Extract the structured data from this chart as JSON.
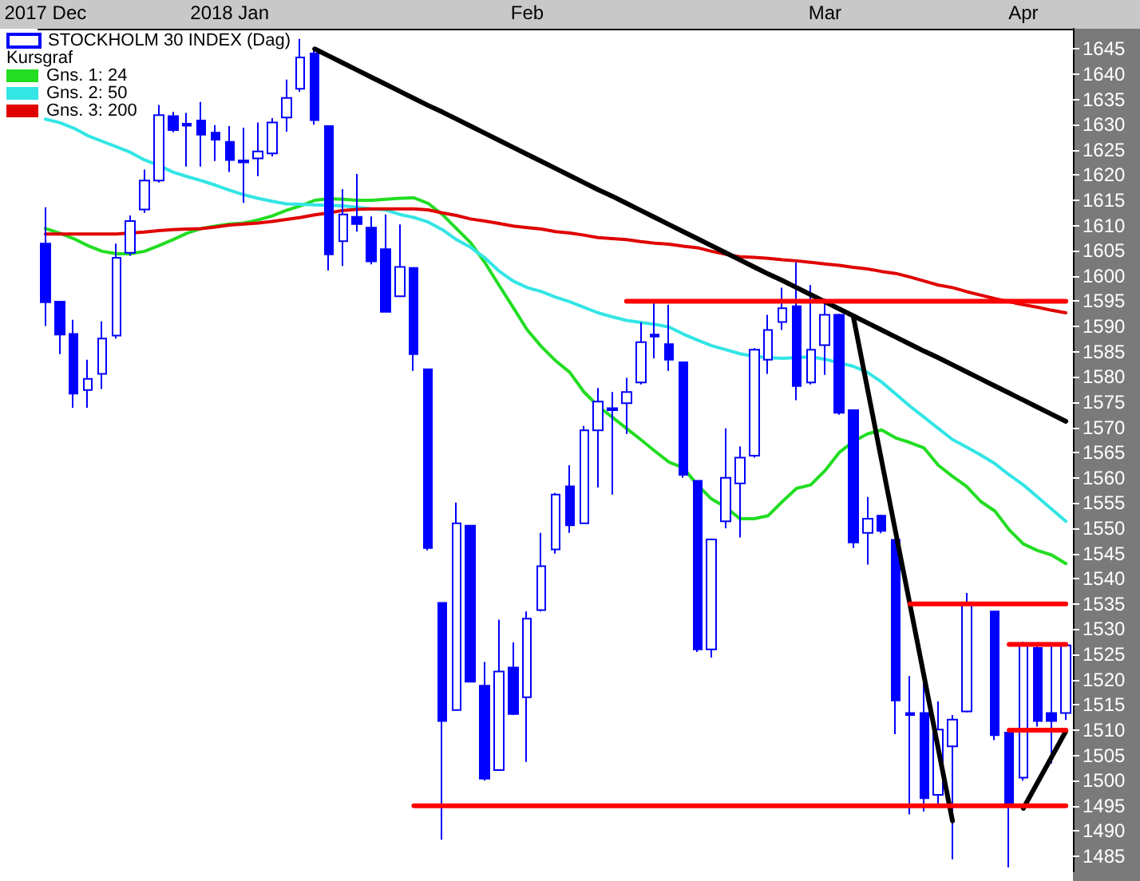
{
  "chart_data": {
    "type": "candlestick",
    "categories": [
      "2017 Dec",
      null,
      null,
      null,
      null,
      null,
      null,
      null,
      null,
      null,
      null,
      null,
      null,
      "2018 Jan",
      null,
      null,
      null,
      null,
      null,
      null,
      null,
      null,
      null,
      null,
      null,
      null,
      null,
      null,
      null,
      null,
      null,
      null,
      null,
      null,
      "Feb",
      null,
      null,
      null,
      null,
      null,
      null,
      null,
      null,
      null,
      null,
      null,
      null,
      null,
      null,
      null,
      null,
      null,
      null,
      null,
      null,
      "Mar",
      null,
      null,
      null,
      null,
      null,
      null,
      null,
      null,
      null,
      null,
      null,
      null,
      null,
      "Apr",
      null,
      null,
      null
    ],
    "series": [
      {
        "name": "STOCKHOLM 30 INDEX (Dag)",
        "color": "#0000ff",
        "ohlc": [
          [
            1606.4,
            1613.6,
            1590.1,
            1594.8
          ],
          [
            1594.9,
            1594.9,
            1584.5,
            1588.4
          ],
          [
            1588.5,
            1591.3,
            1573.9,
            1576.7
          ],
          [
            1577.4,
            1583.4,
            1573.9,
            1579.6
          ],
          [
            1580.6,
            1591.0,
            1577.6,
            1587.6
          ],
          [
            1588.2,
            1606.4,
            1587.6,
            1603.6
          ],
          [
            1604.6,
            1612.0,
            1604.0,
            1610.9
          ],
          [
            1613.2,
            1621.1,
            1612.5,
            1618.9
          ],
          [
            1618.9,
            1633.9,
            1618.5,
            1631.9
          ],
          [
            1631.7,
            1632.5,
            1628.5,
            1628.9
          ],
          [
            1630.2,
            1632.3,
            1621.7,
            1629.8
          ],
          [
            1630.8,
            1634.5,
            1621.7,
            1628.0
          ],
          [
            1628.4,
            1629.9,
            1622.8,
            1627.0
          ],
          [
            1626.6,
            1629.7,
            1620.6,
            1623.0
          ],
          [
            1622.9,
            1629.4,
            1614.5,
            1622.5
          ],
          [
            1623.3,
            1630.4,
            1619.8,
            1624.7
          ],
          [
            1624.3,
            1631.3,
            1623.7,
            1630.4
          ],
          [
            1631.4,
            1638.9,
            1628.6,
            1635.3
          ],
          [
            1637.1,
            1647.0,
            1636.5,
            1643.3
          ],
          [
            1644.1,
            1644.8,
            1630.0,
            1630.9
          ],
          [
            1629.7,
            1629.7,
            1601.1,
            1604.3
          ],
          [
            1606.9,
            1617.2,
            1602.0,
            1612.2
          ],
          [
            1611.7,
            1620.2,
            1608.8,
            1610.3
          ],
          [
            1609.6,
            1611.8,
            1602.3,
            1602.9
          ],
          [
            1605.3,
            1612.2,
            1592.9,
            1592.9
          ],
          [
            1596.0,
            1610.2,
            1596.0,
            1601.8
          ],
          [
            1601.6,
            1601.6,
            1581.2,
            1584.5
          ],
          [
            1581.5,
            1581.5,
            1545.6,
            1546.1
          ],
          [
            1535.2,
            1535.2,
            1488.3,
            1511.8
          ],
          [
            1514.0,
            1555.1,
            1514.0,
            1551.0
          ],
          [
            1550.5,
            1550.5,
            1519.6,
            1519.6
          ],
          [
            1518.8,
            1523.5,
            1500.0,
            1500.4
          ],
          [
            1502.1,
            1531.9,
            1502.0,
            1521.6
          ],
          [
            1522.4,
            1527.4,
            1513.0,
            1513.2
          ],
          [
            1516.5,
            1533.5,
            1503.7,
            1532.1
          ],
          [
            1533.8,
            1549.1,
            1533.5,
            1542.5
          ],
          [
            1545.8,
            1557.0,
            1545.0,
            1556.7
          ],
          [
            1558.3,
            1562.5,
            1549.1,
            1550.6
          ],
          [
            1551.0,
            1570.3,
            1551.0,
            1569.4
          ],
          [
            1569.4,
            1577.8,
            1558.1,
            1575.1
          ],
          [
            1573.8,
            1577.0,
            1556.7,
            1573.4
          ],
          [
            1574.8,
            1579.8,
            1568.7,
            1577.0
          ],
          [
            1578.9,
            1590.8,
            1578.5,
            1586.9
          ],
          [
            1588.4,
            1594.9,
            1583.7,
            1588.0
          ],
          [
            1586.5,
            1594.3,
            1581.2,
            1583.4
          ],
          [
            1582.9,
            1583.0,
            1560.0,
            1560.6
          ],
          [
            1559.4,
            1559.4,
            1525.5,
            1526.0
          ],
          [
            1526.0,
            1548.0,
            1524.4,
            1547.8
          ],
          [
            1551.4,
            1569.8,
            1550.0,
            1560.0
          ],
          [
            1558.9,
            1566.2,
            1548.2,
            1564.0
          ],
          [
            1564.4,
            1585.7,
            1564.0,
            1585.4
          ],
          [
            1583.4,
            1592.3,
            1580.6,
            1589.3
          ],
          [
            1590.9,
            1597.7,
            1589.3,
            1593.6
          ],
          [
            1594.0,
            1602.7,
            1575.4,
            1578.2
          ],
          [
            1578.9,
            1598.2,
            1578.5,
            1585.4
          ],
          [
            1586.3,
            1595.5,
            1580.4,
            1592.3
          ],
          [
            1592.3,
            1592.5,
            1572.5,
            1572.9
          ],
          [
            1573.4,
            1573.4,
            1546.1,
            1547.2
          ],
          [
            1549.1,
            1556.2,
            1542.8,
            1551.9
          ],
          [
            1552.5,
            1552.7,
            1549.0,
            1549.5
          ],
          [
            1547.7,
            1547.7,
            1509.2,
            1515.9
          ],
          [
            1513.4,
            1520.7,
            1493.3,
            1513.0
          ],
          [
            1513.4,
            1519.8,
            1493.9,
            1496.5
          ],
          [
            1497.2,
            1515.7,
            1495.0,
            1510.1
          ],
          [
            1506.8,
            1513.0,
            1484.4,
            1512.1
          ],
          [
            1513.7,
            1537.2,
            1513.5,
            1535.2
          ],
          null,
          [
            1533.5,
            1533.5,
            1508.0,
            1509.0
          ],
          [
            1509.5,
            1509.5,
            1482.8,
            1494.8
          ],
          [
            1500.6,
            1527.5,
            1500.0,
            1527.1
          ],
          [
            1526.3,
            1526.8,
            1510.7,
            1511.8
          ],
          [
            1513.4,
            1527.4,
            1503.4,
            1511.8
          ],
          [
            1513.4,
            1527.4,
            1512.0,
            1526.8
          ]
        ]
      },
      {
        "type": "line",
        "name": "Gns. 1: 24",
        "color": "#22dd22",
        "values": [
          1609.4,
          1608.5,
          1607.4,
          1606.0,
          1604.9,
          1604.4,
          1604.4,
          1604.9,
          1606.0,
          1607.2,
          1608.5,
          1609.4,
          1609.9,
          1610.3,
          1610.5,
          1611.1,
          1611.9,
          1613.0,
          1613.9,
          1615.0,
          1615.3,
          1615.2,
          1615.0,
          1615.0,
          1615.2,
          1615.4,
          1615.5,
          1614.4,
          1612.2,
          1609.4,
          1606.6,
          1602.7,
          1598.2,
          1593.8,
          1589.3,
          1586.0,
          1583.2,
          1580.9,
          1577.0,
          1574.2,
          1572.0,
          1569.8,
          1567.6,
          1565.3,
          1563.1,
          1562.0,
          1558.6,
          1555.8,
          1554.2,
          1551.9,
          1551.9,
          1552.5,
          1555.3,
          1557.9,
          1558.6,
          1561.4,
          1565.0,
          1567.2,
          1568.7,
          1569.5,
          1567.9,
          1567.0,
          1565.9,
          1562.5,
          1560.3,
          1558.3,
          1555.3,
          1553.4,
          1549.7,
          1546.9,
          1545.6,
          1544.7,
          1543.0
        ]
      },
      {
        "type": "line",
        "name": "Gns. 2: 50",
        "color": "#33e5e5",
        "values": [
          1631.1,
          1630.4,
          1629.3,
          1627.8,
          1626.7,
          1625.6,
          1624.5,
          1623.0,
          1621.9,
          1620.6,
          1619.7,
          1618.9,
          1618.0,
          1617.0,
          1616.1,
          1615.4,
          1614.8,
          1614.3,
          1614.2,
          1614.1,
          1614.0,
          1613.9,
          1613.6,
          1613.3,
          1613.1,
          1612.2,
          1611.6,
          1610.7,
          1609.2,
          1607.2,
          1605.7,
          1603.6,
          1601.0,
          1599.0,
          1597.7,
          1596.9,
          1595.8,
          1594.9,
          1593.8,
          1592.7,
          1591.9,
          1591.2,
          1590.8,
          1590.4,
          1589.9,
          1588.5,
          1587.3,
          1586.2,
          1585.4,
          1584.6,
          1584.1,
          1583.8,
          1583.7,
          1583.8,
          1584.0,
          1583.5,
          1582.8,
          1582.1,
          1580.9,
          1579.0,
          1576.6,
          1574.2,
          1572.0,
          1569.8,
          1567.6,
          1566.1,
          1564.5,
          1562.8,
          1560.6,
          1558.6,
          1556.2,
          1553.8,
          1551.4
        ]
      },
      {
        "type": "line",
        "name": "Gns. 3: 200",
        "color": "#e00000",
        "values": [
          1608.3,
          1608.3,
          1608.3,
          1608.3,
          1608.3,
          1608.3,
          1608.5,
          1608.7,
          1609.0,
          1609.2,
          1609.3,
          1609.4,
          1609.7,
          1610.1,
          1610.3,
          1610.5,
          1610.8,
          1611.2,
          1611.6,
          1612.1,
          1612.5,
          1613.0,
          1613.2,
          1613.3,
          1613.3,
          1613.3,
          1613.3,
          1613.1,
          1612.5,
          1612.0,
          1611.3,
          1610.9,
          1610.4,
          1609.9,
          1609.6,
          1609.3,
          1608.8,
          1608.5,
          1608.1,
          1607.6,
          1607.4,
          1607.2,
          1606.8,
          1606.5,
          1606.3,
          1605.9,
          1605.6,
          1604.9,
          1604.3,
          1603.8,
          1603.7,
          1603.5,
          1603.2,
          1603.0,
          1602.7,
          1602.4,
          1602.1,
          1601.7,
          1601.4,
          1600.9,
          1600.5,
          1599.8,
          1599.0,
          1598.2,
          1597.7,
          1596.9,
          1596.2,
          1595.5,
          1594.9,
          1594.3,
          1593.8,
          1593.2,
          1592.7
        ]
      },
      {
        "type": "line",
        "color": "#000000",
        "values": [
          null,
          null,
          null,
          null,
          null,
          null,
          null,
          null,
          null,
          null,
          null,
          null,
          null,
          null,
          null,
          null,
          null,
          null,
          null,
          1645.0,
          1643.6,
          1642.2,
          1640.8,
          1639.4,
          1638.0,
          1636.6,
          1635.2,
          1633.8,
          1632.5,
          1631.1,
          1629.7,
          1628.3,
          1626.9,
          1625.5,
          1624.1,
          1622.7,
          1621.3,
          1619.9,
          1618.5,
          1617.1,
          1615.8,
          1614.4,
          1613.0,
          1611.6,
          1610.2,
          1608.8,
          1607.4,
          1606.0,
          1604.6,
          1603.2,
          1601.8,
          1600.4,
          1599.1,
          1597.7,
          1596.3,
          1594.9,
          1593.5,
          1592.1,
          1590.7,
          1589.3,
          1587.9,
          1586.5,
          1585.1,
          1583.8,
          1582.4,
          1581.0,
          1579.6,
          1578.2,
          1576.8,
          1575.4,
          1574.0,
          1572.6,
          1571.2
        ]
      },
      {
        "type": "line",
        "color": "#000000",
        "values": [
          null,
          null,
          null,
          null,
          null,
          null,
          null,
          null,
          null,
          null,
          null,
          null,
          null,
          null,
          null,
          null,
          null,
          null,
          null,
          null,
          null,
          null,
          null,
          null,
          null,
          null,
          null,
          null,
          null,
          null,
          null,
          null,
          null,
          null,
          null,
          null,
          null,
          null,
          null,
          null,
          null,
          null,
          null,
          null,
          null,
          null,
          null,
          null,
          null,
          null,
          null,
          null,
          null,
          null,
          null,
          null,
          null,
          1592.0,
          1577.7,
          1563.4,
          1549.1,
          1534.9,
          1520.6,
          1506.3,
          1492.0,
          null,
          null,
          null,
          null,
          null,
          null,
          null,
          null
        ]
      },
      {
        "type": "line",
        "color": "#000000",
        "values": [
          null,
          null,
          null,
          null,
          null,
          null,
          null,
          null,
          null,
          null,
          null,
          null,
          null,
          null,
          null,
          null,
          null,
          null,
          null,
          null,
          null,
          null,
          null,
          null,
          null,
          null,
          null,
          null,
          null,
          null,
          null,
          null,
          null,
          null,
          null,
          null,
          null,
          null,
          null,
          null,
          null,
          null,
          null,
          null,
          null,
          null,
          null,
          null,
          null,
          null,
          null,
          null,
          null,
          null,
          null,
          null,
          null,
          null,
          null,
          null,
          null,
          null,
          null,
          null,
          null,
          null,
          null,
          null,
          null,
          1494.5,
          1499.6,
          1504.7,
          1509.8
        ]
      },
      {
        "type": "line",
        "color": "#ff0000",
        "values": [
          null,
          null,
          null,
          null,
          null,
          null,
          null,
          null,
          null,
          null,
          null,
          null,
          null,
          null,
          null,
          null,
          null,
          null,
          null,
          null,
          null,
          null,
          null,
          null,
          null,
          null,
          null,
          null,
          null,
          null,
          null,
          null,
          null,
          null,
          null,
          null,
          null,
          null,
          null,
          null,
          null,
          1595,
          1595,
          1595,
          1595,
          1595,
          1595,
          1595,
          1595,
          1595,
          1595,
          1595,
          1595,
          1595,
          1595,
          1595,
          1595,
          1595,
          1595,
          1595,
          1595,
          1595,
          1595,
          1595,
          1595,
          1595,
          1595,
          1595,
          1595,
          1595,
          1595,
          1595,
          1595
        ]
      },
      {
        "type": "line",
        "color": "#ff0000",
        "values": [
          null,
          null,
          null,
          null,
          null,
          null,
          null,
          null,
          null,
          null,
          null,
          null,
          null,
          null,
          null,
          null,
          null,
          null,
          null,
          null,
          null,
          null,
          null,
          null,
          null,
          null,
          1495,
          1495,
          1495,
          1495,
          1495,
          1495,
          1495,
          1495,
          1495,
          1495,
          1495,
          1495,
          1495,
          1495,
          1495,
          1495,
          1495,
          1495,
          1495,
          1495,
          1495,
          1495,
          1495,
          1495,
          1495,
          1495,
          1495,
          1495,
          1495,
          1495,
          1495,
          1495,
          1495,
          1495,
          1495,
          1495,
          1495,
          1495,
          1495,
          1495,
          1495,
          1495,
          1495,
          1495,
          1495,
          1495,
          1495
        ]
      },
      {
        "type": "line",
        "color": "#ff0000",
        "values": [
          null,
          null,
          null,
          null,
          null,
          null,
          null,
          null,
          null,
          null,
          null,
          null,
          null,
          null,
          null,
          null,
          null,
          null,
          null,
          null,
          null,
          null,
          null,
          null,
          null,
          null,
          null,
          null,
          null,
          null,
          null,
          null,
          null,
          null,
          null,
          null,
          null,
          null,
          null,
          null,
          null,
          null,
          null,
          null,
          null,
          null,
          null,
          null,
          null,
          null,
          null,
          null,
          null,
          null,
          null,
          null,
          null,
          null,
          null,
          null,
          null,
          1535,
          1535,
          1535,
          1535,
          1535,
          1535,
          1535,
          1535,
          1535,
          1535,
          1535,
          1535
        ]
      },
      {
        "type": "line",
        "color": "#ff0000",
        "values": [
          null,
          null,
          null,
          null,
          null,
          null,
          null,
          null,
          null,
          null,
          null,
          null,
          null,
          null,
          null,
          null,
          null,
          null,
          null,
          null,
          null,
          null,
          null,
          null,
          null,
          null,
          null,
          null,
          null,
          null,
          null,
          null,
          null,
          null,
          null,
          null,
          null,
          null,
          null,
          null,
          null,
          null,
          null,
          null,
          null,
          null,
          null,
          null,
          null,
          null,
          null,
          null,
          null,
          null,
          null,
          null,
          null,
          null,
          null,
          null,
          null,
          null,
          null,
          null,
          null,
          null,
          null,
          null,
          1527,
          1527,
          1527,
          1527,
          1527
        ]
      },
      {
        "type": "line",
        "color": "#ff0000",
        "values": [
          null,
          null,
          null,
          null,
          null,
          null,
          null,
          null,
          null,
          null,
          null,
          null,
          null,
          null,
          null,
          null,
          null,
          null,
          null,
          null,
          null,
          null,
          null,
          null,
          null,
          null,
          null,
          null,
          null,
          null,
          null,
          null,
          null,
          null,
          null,
          null,
          null,
          null,
          null,
          null,
          null,
          null,
          null,
          null,
          null,
          null,
          null,
          null,
          null,
          null,
          null,
          null,
          null,
          null,
          null,
          null,
          null,
          null,
          null,
          null,
          null,
          null,
          null,
          null,
          null,
          null,
          null,
          null,
          1510,
          1510,
          1510,
          1510,
          1510
        ]
      }
    ],
    "legend": "top left",
    "legend_title": "Kursgraf",
    "ylim": [
      1482,
      1649
    ],
    "yticks": [
      1485,
      1490,
      1495,
      1500,
      1505,
      1510,
      1515,
      1520,
      1525,
      1530,
      1535,
      1540,
      1545,
      1550,
      1555,
      1560,
      1565,
      1570,
      1575,
      1580,
      1585,
      1590,
      1595,
      1600,
      1605,
      1610,
      1615,
      1620,
      1625,
      1630,
      1635,
      1640,
      1645
    ]
  }
}
